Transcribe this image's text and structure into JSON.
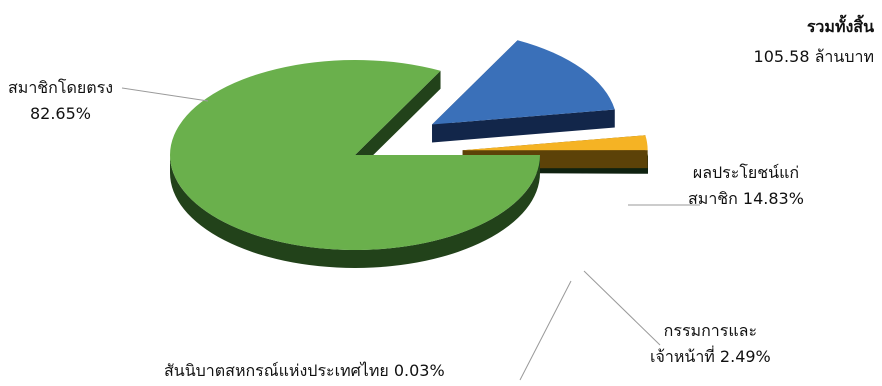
{
  "summary": {
    "title": "รวมทั้งสิ้น",
    "amount": "105.58 ล้านบาท"
  },
  "chart_data": {
    "type": "pie",
    "style": "3d-exploded",
    "slices": [
      {
        "name": "สมาชิกโดยตรง",
        "value": 82.65,
        "label": "82.65%",
        "color": "#6ab04c",
        "side_color": "#22421a"
      },
      {
        "name": "ผลประโยชน์แก่สมาชิก",
        "value": 14.83,
        "label": "14.83%",
        "color": "#3a70b9",
        "side_color": "#12264a"
      },
      {
        "name": "กรรมการและเจ้าหน้าที่",
        "value": 2.49,
        "label": "2.49%",
        "color": "#f5b324",
        "side_color": "#5c4208"
      },
      {
        "name": "สันนิบาตสหกรณ์แห่งประเทศไทย",
        "value": 0.03,
        "label": "0.03%",
        "color": "#7aa060",
        "side_color": "#0f2210"
      }
    ],
    "labels": {
      "direct": {
        "line1": "สมาชิกโดยตรง",
        "line2": "82.65%"
      },
      "benefit": {
        "line1": "ผลประโยชน์แก่",
        "line2": "สมาชิก 14.83%"
      },
      "staff": {
        "line1": "กรรมการและ",
        "line2": "เจ้าหน้าที่ 2.49%"
      },
      "league": {
        "line1": "สันนิบาตสหกรณ์แห่งประเทศไทย 0.03%"
      }
    }
  }
}
